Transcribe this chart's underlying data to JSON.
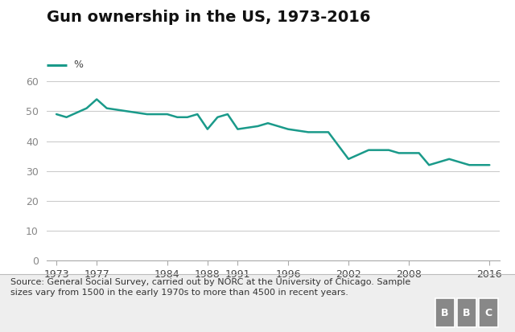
{
  "title": "Gun ownership in the US, 1973-2016",
  "legend_label": "%",
  "line_color": "#1a9a8a",
  "background_color": "#ffffff",
  "footer_bg_color": "#eeeeee",
  "years": [
    1973,
    1974,
    1976,
    1977,
    1978,
    1980,
    1982,
    1984,
    1985,
    1986,
    1987,
    1988,
    1989,
    1990,
    1991,
    1993,
    1994,
    1996,
    1998,
    2000,
    2002,
    2004,
    2006,
    2007,
    2008,
    2009,
    2010,
    2012,
    2014,
    2016
  ],
  "values": [
    49,
    48,
    51,
    54,
    51,
    50,
    49,
    49,
    48,
    48,
    49,
    44,
    48,
    49,
    44,
    45,
    46,
    44,
    43,
    43,
    34,
    37,
    37,
    36,
    36,
    36,
    32,
    34,
    32,
    32
  ],
  "xtick_labels": [
    "1973",
    "1977",
    "1984",
    "1988",
    "1991",
    "1996",
    "2002",
    "2008",
    "2016"
  ],
  "xtick_positions": [
    1973,
    1977,
    1984,
    1988,
    1991,
    1996,
    2002,
    2008,
    2016
  ],
  "ytick_labels": [
    "0",
    "10",
    "20",
    "30",
    "40",
    "50",
    "60"
  ],
  "ytick_positions": [
    0,
    10,
    20,
    30,
    40,
    50,
    60
  ],
  "ylim": [
    0,
    65
  ],
  "xlim": [
    1972,
    2017
  ],
  "source_text": "Source: General Social Survey, carried out by NORC at the University of Chicago. Sample\nsizes vary from 1500 in the early 1970s to more than 4500 in recent years.",
  "line_width": 1.8,
  "title_fontsize": 14,
  "tick_fontsize": 9,
  "source_fontsize": 8
}
